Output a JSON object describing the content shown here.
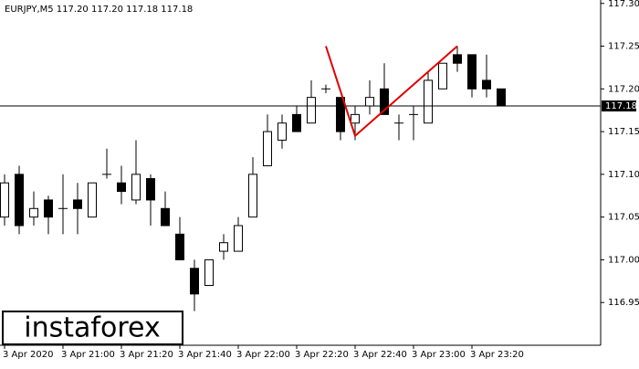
{
  "chart_data": {
    "type": "candlestick",
    "header": "EURJPY,M5  117.20 117.20 117.18 117.18",
    "logo": "instaforex",
    "categories": [
      "3 Apr 2020",
      null,
      null,
      null,
      "3 Apr 21:00",
      null,
      null,
      null,
      "3 Apr 21:20",
      null,
      null,
      null,
      "3 Apr 21:40",
      null,
      null,
      null,
      "3 Apr 22:00",
      null,
      null,
      null,
      "3 Apr 22:20",
      null,
      null,
      null,
      "3 Apr 22:40",
      null,
      null,
      null,
      "3 Apr 23:00",
      null,
      null,
      null,
      "3 Apr 23:20",
      null,
      null
    ],
    "open": [
      117.05,
      117.1,
      117.05,
      117.07,
      117.06,
      117.07,
      117.05,
      117.1,
      117.09,
      117.07,
      117.095,
      117.06,
      117.03,
      116.99,
      116.97,
      117.01,
      117.01,
      117.05,
      117.11,
      117.14,
      117.17,
      117.16,
      117.2,
      117.19,
      117.16,
      117.18,
      117.2,
      117.16,
      117.17,
      117.16,
      117.2,
      117.24,
      117.24,
      117.21,
      117.2
    ],
    "high": [
      117.1,
      117.11,
      117.08,
      117.075,
      117.1,
      117.09,
      117.09,
      117.13,
      117.11,
      117.14,
      117.1,
      117.08,
      117.05,
      117.0,
      117.0,
      117.03,
      117.05,
      117.12,
      117.17,
      117.17,
      117.18,
      117.21,
      117.205,
      117.19,
      117.18,
      117.21,
      117.23,
      117.17,
      117.18,
      117.22,
      117.23,
      117.25,
      117.24,
      117.24,
      117.2
    ],
    "low": [
      117.04,
      117.03,
      117.04,
      117.03,
      117.03,
      117.03,
      117.05,
      117.095,
      117.065,
      117.065,
      117.04,
      117.04,
      117.0,
      116.94,
      116.97,
      117.0,
      117.01,
      117.05,
      117.11,
      117.13,
      117.15,
      117.16,
      117.195,
      117.14,
      117.14,
      117.17,
      117.17,
      117.14,
      117.14,
      117.16,
      117.2,
      117.22,
      117.19,
      117.19,
      117.18
    ],
    "close": [
      117.09,
      117.04,
      117.06,
      117.05,
      117.06,
      117.06,
      117.09,
      117.1,
      117.08,
      117.1,
      117.07,
      117.04,
      117.0,
      116.96,
      117.0,
      117.02,
      117.04,
      117.1,
      117.15,
      117.16,
      117.15,
      117.19,
      117.2,
      117.15,
      117.17,
      117.19,
      117.17,
      117.16,
      117.17,
      117.21,
      117.23,
      117.23,
      117.2,
      117.2,
      117.18
    ],
    "last_price": 117.18,
    "pattern": {
      "color": "#e00000",
      "index": [
        22,
        24,
        31
      ],
      "values": [
        117.25,
        117.145,
        117.25
      ]
    },
    "ylim": [
      116.9,
      117.304
    ],
    "yticks": [
      116.95,
      {
        "value": 117.0,
        "label": "117.00"
      },
      117.05,
      {
        "value": 117.1,
        "label": "117.10"
      },
      117.15,
      {
        "value": 117.2,
        "label": "117.20"
      },
      117.25,
      {
        "value": 117.3,
        "label": "117.30"
      }
    ]
  }
}
